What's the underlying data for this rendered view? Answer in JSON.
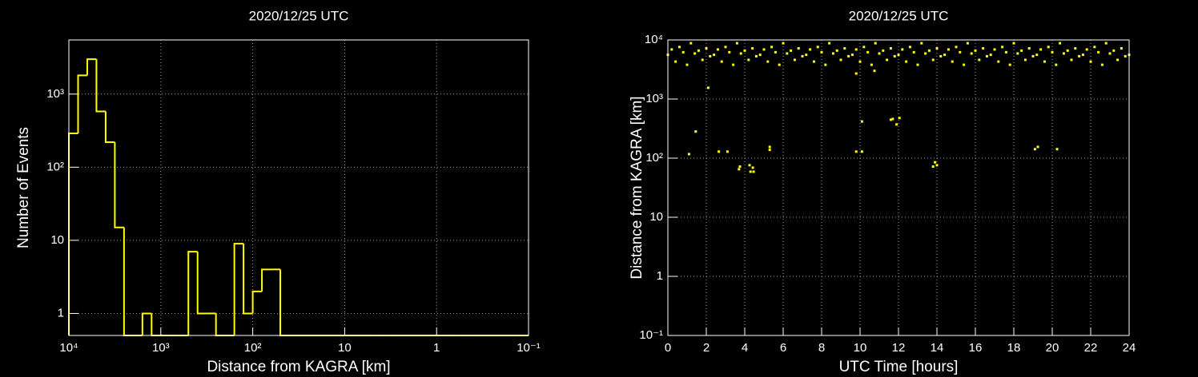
{
  "chart_data": [
    {
      "type": "histogram",
      "title": "2020/12/25 UTC",
      "x_label": "Distance from KAGRA [km]",
      "y_label": "Number of Events",
      "color": "#ffff00",
      "xscale": "log",
      "yscale": "log",
      "grid": true,
      "xlim": [
        10000,
        0.1
      ],
      "ylim": [
        0.5,
        5500
      ],
      "xticks": [
        {
          "value": 10000,
          "label": "10⁴"
        },
        {
          "value": 1000,
          "label": "10³"
        },
        {
          "value": 100,
          "label": "10²"
        },
        10,
        1,
        {
          "value": 0.1,
          "label": "10⁻¹"
        }
      ],
      "yticks": [
        1,
        10,
        {
          "value": 100,
          "label": "10²"
        },
        {
          "value": 1000,
          "label": "10³"
        }
      ],
      "bins": [
        10000,
        7943,
        6310,
        5012,
        3981,
        3162,
        2512,
        1995,
        1585,
        1259,
        1000,
        794.3,
        631.0,
        501.2,
        398.1,
        316.2,
        251.2,
        199.5,
        158.5,
        125.9,
        100,
        79.43,
        63.1,
        50.12,
        39.81,
        31.62,
        25.12,
        19.95,
        15.85,
        12.59,
        10,
        7.943,
        6.31,
        5.012,
        3.981,
        3.162,
        2.512,
        1.995,
        1.585,
        1.259,
        1,
        0.7943,
        0.631,
        0.5012,
        0.3981,
        0.3162,
        0.2512,
        0.1995,
        0.1585,
        0.1259,
        0.1
      ],
      "values": [
        290,
        1800,
        3000,
        580,
        220,
        15,
        0,
        0,
        1,
        0,
        0,
        0,
        0,
        7,
        1,
        1,
        0,
        0,
        9,
        1,
        2,
        4,
        4,
        0,
        0,
        0,
        0,
        0,
        0,
        0,
        0,
        0,
        0,
        0,
        0,
        0,
        0,
        0,
        0,
        0,
        0,
        0,
        0,
        0,
        0,
        0,
        0,
        0,
        0,
        0
      ]
    },
    {
      "type": "scatter",
      "title": "2020/12/25 UTC",
      "x_label": "UTC Time [hours]",
      "y_label": "Distance from KAGRA [km]",
      "color": "#ffff00",
      "xscale": "linear",
      "yscale": "log",
      "grid": true,
      "xlim": [
        0,
        24
      ],
      "ylim": [
        0.1,
        10000
      ],
      "xticks": [
        0,
        2,
        4,
        6,
        8,
        10,
        12,
        14,
        16,
        18,
        20,
        22,
        24
      ],
      "yticks": [
        {
          "value": 0.1,
          "label": "10⁻¹"
        },
        1,
        10,
        {
          "value": 100,
          "label": "10²"
        },
        {
          "value": 1000,
          "label": "10³"
        },
        {
          "value": 10000,
          "label": "10⁴"
        }
      ],
      "x": [
        0,
        0.2,
        0.4,
        0.6,
        0.8,
        1,
        1.2,
        1.4,
        1.6,
        1.8,
        2,
        2.2,
        2.4,
        2.6,
        2.8,
        3,
        3.2,
        3.4,
        3.6,
        3.8,
        4,
        4.2,
        4.4,
        4.6,
        4.8,
        5,
        5.2,
        5.4,
        5.6,
        5.8,
        6,
        6.2,
        6.4,
        6.6,
        6.8,
        7,
        7.2,
        7.4,
        7.6,
        7.8,
        8,
        8.2,
        8.4,
        8.6,
        8.8,
        9,
        9.2,
        9.4,
        9.6,
        9.8,
        10,
        10.2,
        10.4,
        10.6,
        10.8,
        11,
        11.2,
        11.4,
        11.6,
        11.8,
        12,
        12.2,
        12.4,
        12.6,
        12.8,
        13,
        13.2,
        13.4,
        13.6,
        13.8,
        14,
        14.2,
        14.4,
        14.6,
        14.8,
        15,
        15.2,
        15.4,
        15.6,
        15.8,
        16,
        16.2,
        16.4,
        16.6,
        16.8,
        17,
        17.2,
        17.4,
        17.6,
        17.8,
        18,
        18.2,
        18.4,
        18.6,
        18.8,
        19,
        19.2,
        19.4,
        19.6,
        19.8,
        20,
        20.2,
        20.4,
        20.6,
        20.8,
        21,
        21.2,
        21.4,
        21.6,
        21.8,
        22,
        22.2,
        22.4,
        22.6,
        22.8,
        23,
        23.2,
        23.4,
        23.6,
        23.8,
        24,
        1.1,
        1.45,
        2.1,
        2.65,
        3.1,
        3.7,
        3.75,
        4.25,
        4.3,
        4.42,
        4.46,
        5.3,
        5.3,
        9.8,
        10.1,
        10.1,
        11.6,
        11.7,
        11.9,
        12.05,
        13.8,
        13.9,
        14.0,
        19.1,
        19.25,
        20.25,
        9.8,
        10.75
      ],
      "values": [
        5600,
        6900,
        4300,
        7600,
        6200,
        3800,
        8800,
        5900,
        6600,
        4600,
        7200,
        5300,
        5600,
        6900,
        4300,
        7600,
        6200,
        3800,
        8800,
        5900,
        6600,
        4600,
        7200,
        5300,
        5600,
        6900,
        4300,
        7600,
        6200,
        3800,
        8800,
        5900,
        6600,
        4600,
        7200,
        5300,
        5600,
        6900,
        4300,
        7600,
        6200,
        3800,
        8800,
        5900,
        6600,
        4600,
        7200,
        5300,
        5600,
        6900,
        4300,
        7600,
        6200,
        3800,
        8800,
        5900,
        6600,
        4600,
        7200,
        5300,
        5600,
        6900,
        4300,
        7600,
        6200,
        3800,
        8800,
        5900,
        6600,
        4600,
        7200,
        5300,
        5600,
        6900,
        4300,
        7600,
        6200,
        3800,
        8800,
        5900,
        6600,
        4600,
        7200,
        5300,
        5600,
        6900,
        4300,
        7600,
        6200,
        3800,
        8800,
        5900,
        6600,
        4600,
        7200,
        5300,
        5600,
        6900,
        4300,
        7600,
        6200,
        3800,
        8800,
        5900,
        6600,
        4600,
        7200,
        5300,
        5600,
        6900,
        4300,
        7600,
        6200,
        3800,
        8800,
        5900,
        6600,
        4600,
        7200,
        5300,
        5600,
        117,
        282,
        1550,
        129,
        129,
        65,
        72,
        76,
        59,
        69,
        59,
        138,
        155,
        129,
        129,
        417,
        447,
        460,
        372,
        478,
        72,
        85,
        76,
        142,
        155,
        142,
        2700,
        3000
      ]
    }
  ]
}
